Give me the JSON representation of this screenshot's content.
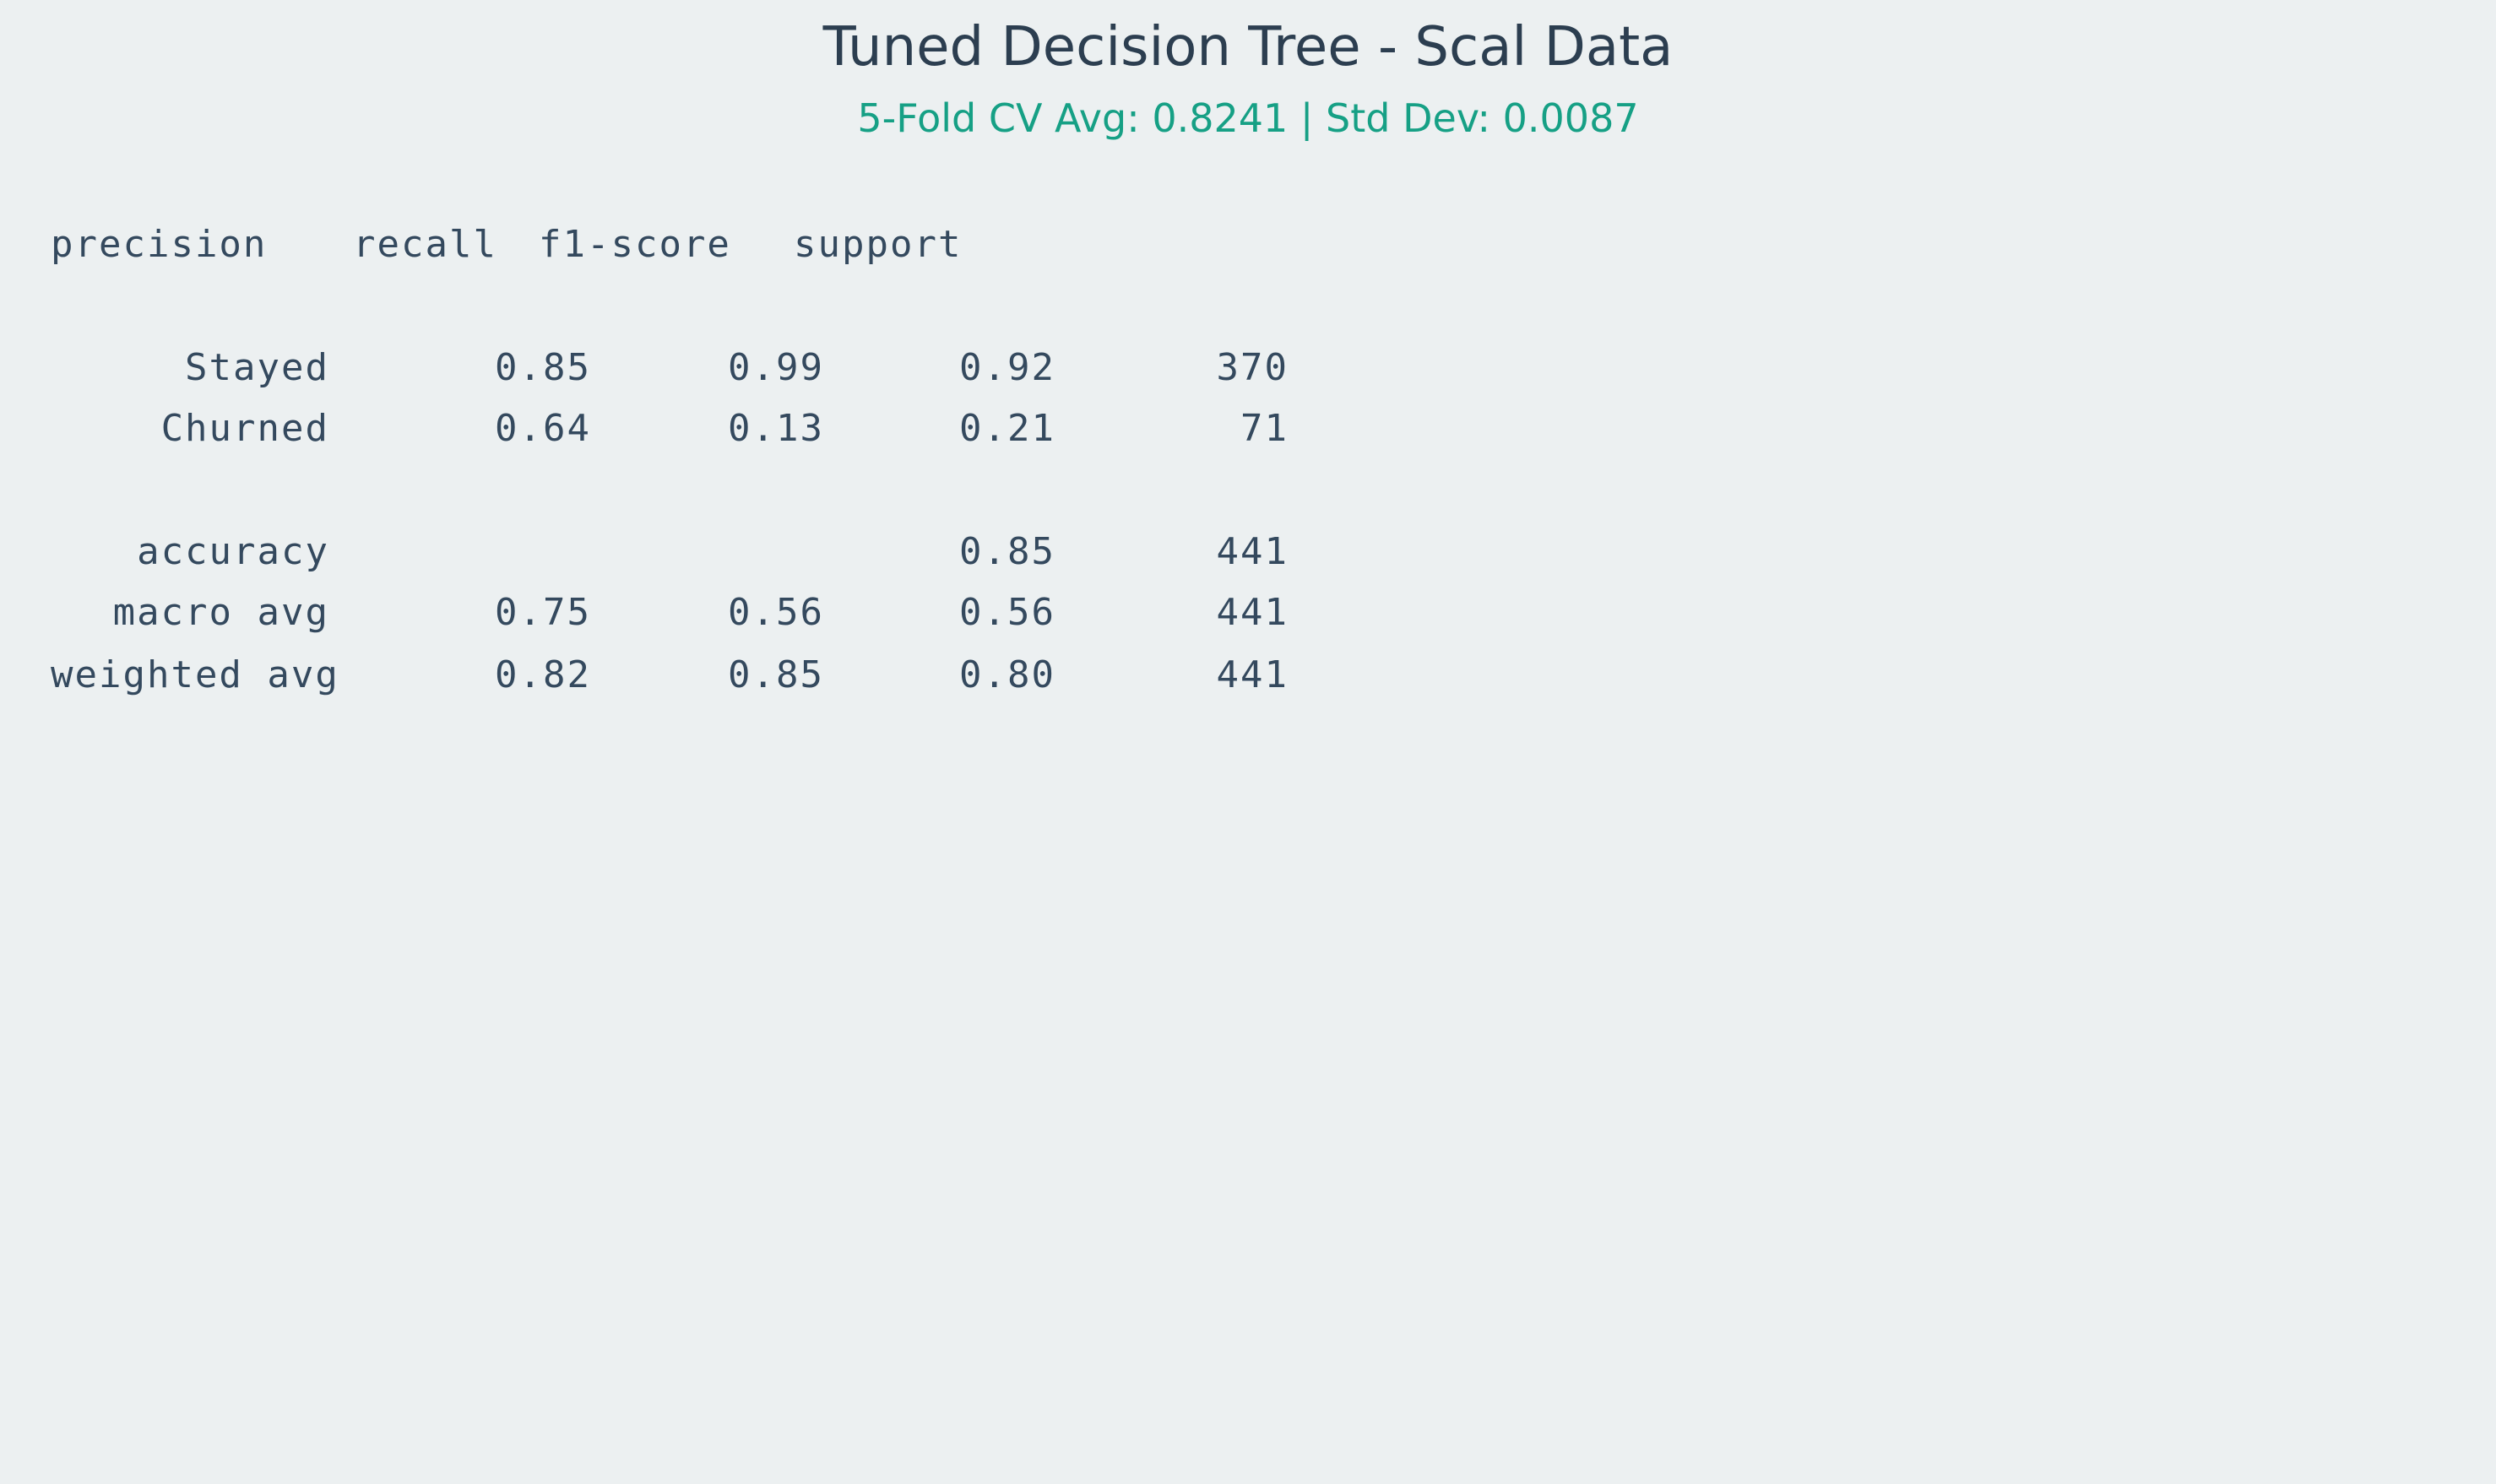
{
  "title": "Tuned Decision Tree - Scal Data",
  "subtitle": "5-Fold CV Avg: 0.8241 | Std Dev: 0.0087",
  "report": {
    "headers": [
      "precision",
      "recall",
      "f1-score",
      "support"
    ],
    "rows": [
      {
        "label": "Stayed",
        "precision": "0.85",
        "recall": "0.99",
        "f1": "0.92",
        "support": "370"
      },
      {
        "label": "Churned",
        "precision": "0.64",
        "recall": "0.13",
        "f1": "0.21",
        "support": "71"
      }
    ],
    "summary": [
      {
        "label": "accuracy",
        "precision": "",
        "recall": "",
        "f1": "0.85",
        "support": "441"
      },
      {
        "label": "macro avg",
        "precision": "0.75",
        "recall": "0.56",
        "f1": "0.56",
        "support": "441"
      },
      {
        "label": "weighted avg",
        "precision": "0.82",
        "recall": "0.85",
        "f1": "0.80",
        "support": "441"
      }
    ]
  },
  "colors": {
    "background": "#ecf0f1",
    "title": "#2c3e50",
    "subtitle": "#16a085",
    "text": "#34495e"
  }
}
